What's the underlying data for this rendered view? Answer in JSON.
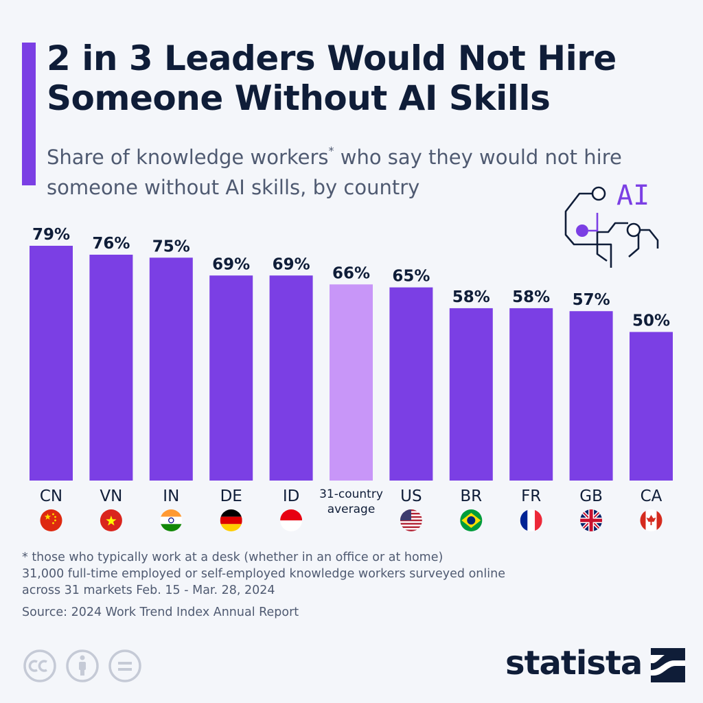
{
  "header": {
    "title": "2 in 3 Leaders Would Not Hire Someone Without AI Skills",
    "subtitle_part1": "Share of knowledge workers",
    "subtitle_mark": "*",
    "subtitle_part2": " who say they would not hire someone without AI skills, by country",
    "accent_color": "#7b3fe4"
  },
  "chart_data": {
    "type": "bar",
    "categories": [
      "CN",
      "VN",
      "IN",
      "DE",
      "ID",
      "31-country average",
      "US",
      "BR",
      "FR",
      "GB",
      "CA"
    ],
    "values": [
      79,
      76,
      75,
      69,
      69,
      66,
      65,
      58,
      58,
      57,
      50
    ],
    "value_labels": [
      "79%",
      "76%",
      "75%",
      "69%",
      "69%",
      "66%",
      "65%",
      "58%",
      "58%",
      "57%",
      "50%"
    ],
    "highlight_index": 5,
    "ylim": [
      0,
      79
    ],
    "bar_color": "#7b3fe4",
    "highlight_color": "#c896f8",
    "flags": [
      "china-flag-icon",
      "vietnam-flag-icon",
      "india-flag-icon",
      "germany-flag-icon",
      "indonesia-flag-icon",
      "",
      "usa-flag-icon",
      "brazil-flag-icon",
      "france-flag-icon",
      "uk-flag-icon",
      "canada-flag-icon"
    ],
    "grid": false,
    "legend": "none"
  },
  "icon": {
    "label": "AI"
  },
  "footer": {
    "note1": "* those who typically work at a desk (whether in an office or at home)",
    "note2": "31,000 full-time employed or self-employed knowledge workers surveyed online",
    "note3": "across 31 markets Feb. 15 - Mar. 28, 2024",
    "source": "Source: 2024 Work Trend Index Annual Report",
    "logo": "statista"
  }
}
